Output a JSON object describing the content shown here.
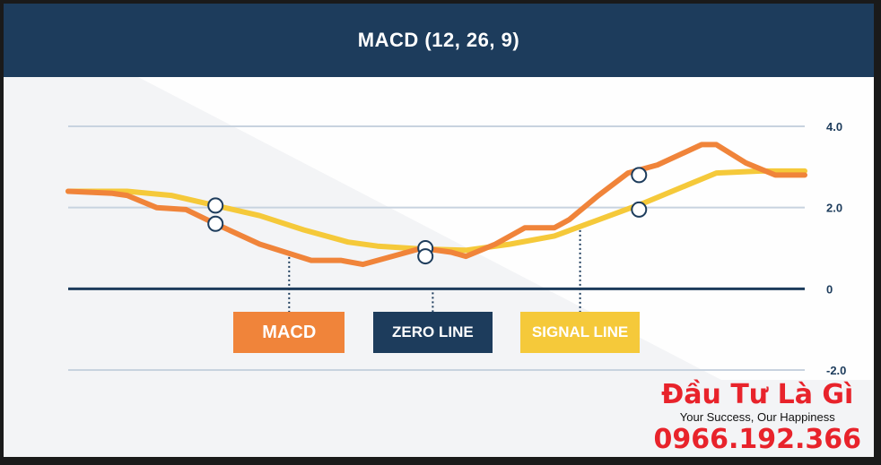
{
  "title": "MACD (12, 26, 9)",
  "chart_data": {
    "type": "line",
    "title": "MACD (12, 26, 9)",
    "xlabel": "",
    "ylabel": "",
    "ylim": [
      -2.0,
      4.0
    ],
    "yticks": [
      {
        "value": 4.0,
        "label": "4.0"
      },
      {
        "value": 2.0,
        "label": "2.0"
      },
      {
        "value": 0,
        "label": "0"
      },
      {
        "value": -2.0,
        "label": "-2.0"
      }
    ],
    "xlim": [
      0,
      100
    ],
    "grid": true,
    "series": [
      {
        "name": "MACD",
        "color": "#f0843a",
        "points": [
          [
            0,
            2.4
          ],
          [
            6,
            2.35
          ],
          [
            8,
            2.3
          ],
          [
            12,
            2.0
          ],
          [
            16,
            1.95
          ],
          [
            20,
            1.6
          ],
          [
            26,
            1.1
          ],
          [
            33,
            0.7
          ],
          [
            37,
            0.7
          ],
          [
            40,
            0.6
          ],
          [
            44,
            0.8
          ],
          [
            48,
            1.0
          ],
          [
            52,
            0.9
          ],
          [
            54,
            0.8
          ],
          [
            58,
            1.1
          ],
          [
            62,
            1.5
          ],
          [
            66,
            1.5
          ],
          [
            68,
            1.7
          ],
          [
            72,
            2.3
          ],
          [
            76,
            2.85
          ],
          [
            80,
            3.05
          ],
          [
            86,
            3.55
          ],
          [
            88,
            3.55
          ],
          [
            92,
            3.1
          ],
          [
            96,
            2.8
          ],
          [
            100,
            2.8
          ]
        ]
      },
      {
        "name": "SIGNAL LINE",
        "color": "#f5c93a",
        "points": [
          [
            0,
            2.4
          ],
          [
            8,
            2.4
          ],
          [
            14,
            2.3
          ],
          [
            20,
            2.05
          ],
          [
            26,
            1.8
          ],
          [
            32,
            1.45
          ],
          [
            38,
            1.15
          ],
          [
            42,
            1.05
          ],
          [
            48,
            0.98
          ],
          [
            54,
            0.95
          ],
          [
            60,
            1.1
          ],
          [
            66,
            1.3
          ],
          [
            72,
            1.7
          ],
          [
            78,
            2.1
          ],
          [
            84,
            2.55
          ],
          [
            88,
            2.85
          ],
          [
            94,
            2.9
          ],
          [
            100,
            2.9
          ]
        ]
      }
    ],
    "zero_line": {
      "name": "ZERO LINE",
      "value": 0,
      "color": "#1d3c5c"
    },
    "crossover_markers": [
      {
        "x": 20,
        "y": 2.05
      },
      {
        "x": 20,
        "y": 1.6
      },
      {
        "x": 48.5,
        "y": 1.0
      },
      {
        "x": 48.5,
        "y": 0.8
      },
      {
        "x": 77.5,
        "y": 2.8
      },
      {
        "x": 77.5,
        "y": 1.95
      }
    ],
    "callouts": [
      {
        "label": "MACD",
        "series": "MACD",
        "x": 30,
        "box_color": "#f0843a",
        "text_color": "#ffffff"
      },
      {
        "label": "ZERO LINE",
        "series": "ZERO LINE",
        "x": 49.5,
        "box_color": "#1d3c5c",
        "text_color": "#ffffff"
      },
      {
        "label": "SIGNAL LINE",
        "series": "SIGNAL LINE",
        "x": 69.5,
        "box_color": "#f5c93a",
        "text_color": "#ffffff"
      }
    ]
  },
  "watermark": {
    "brand": "Đầu Tư Là Gì",
    "tagline": "Your Success, Our Happiness",
    "phone": "0966.192.366",
    "color": "#e8232b"
  }
}
